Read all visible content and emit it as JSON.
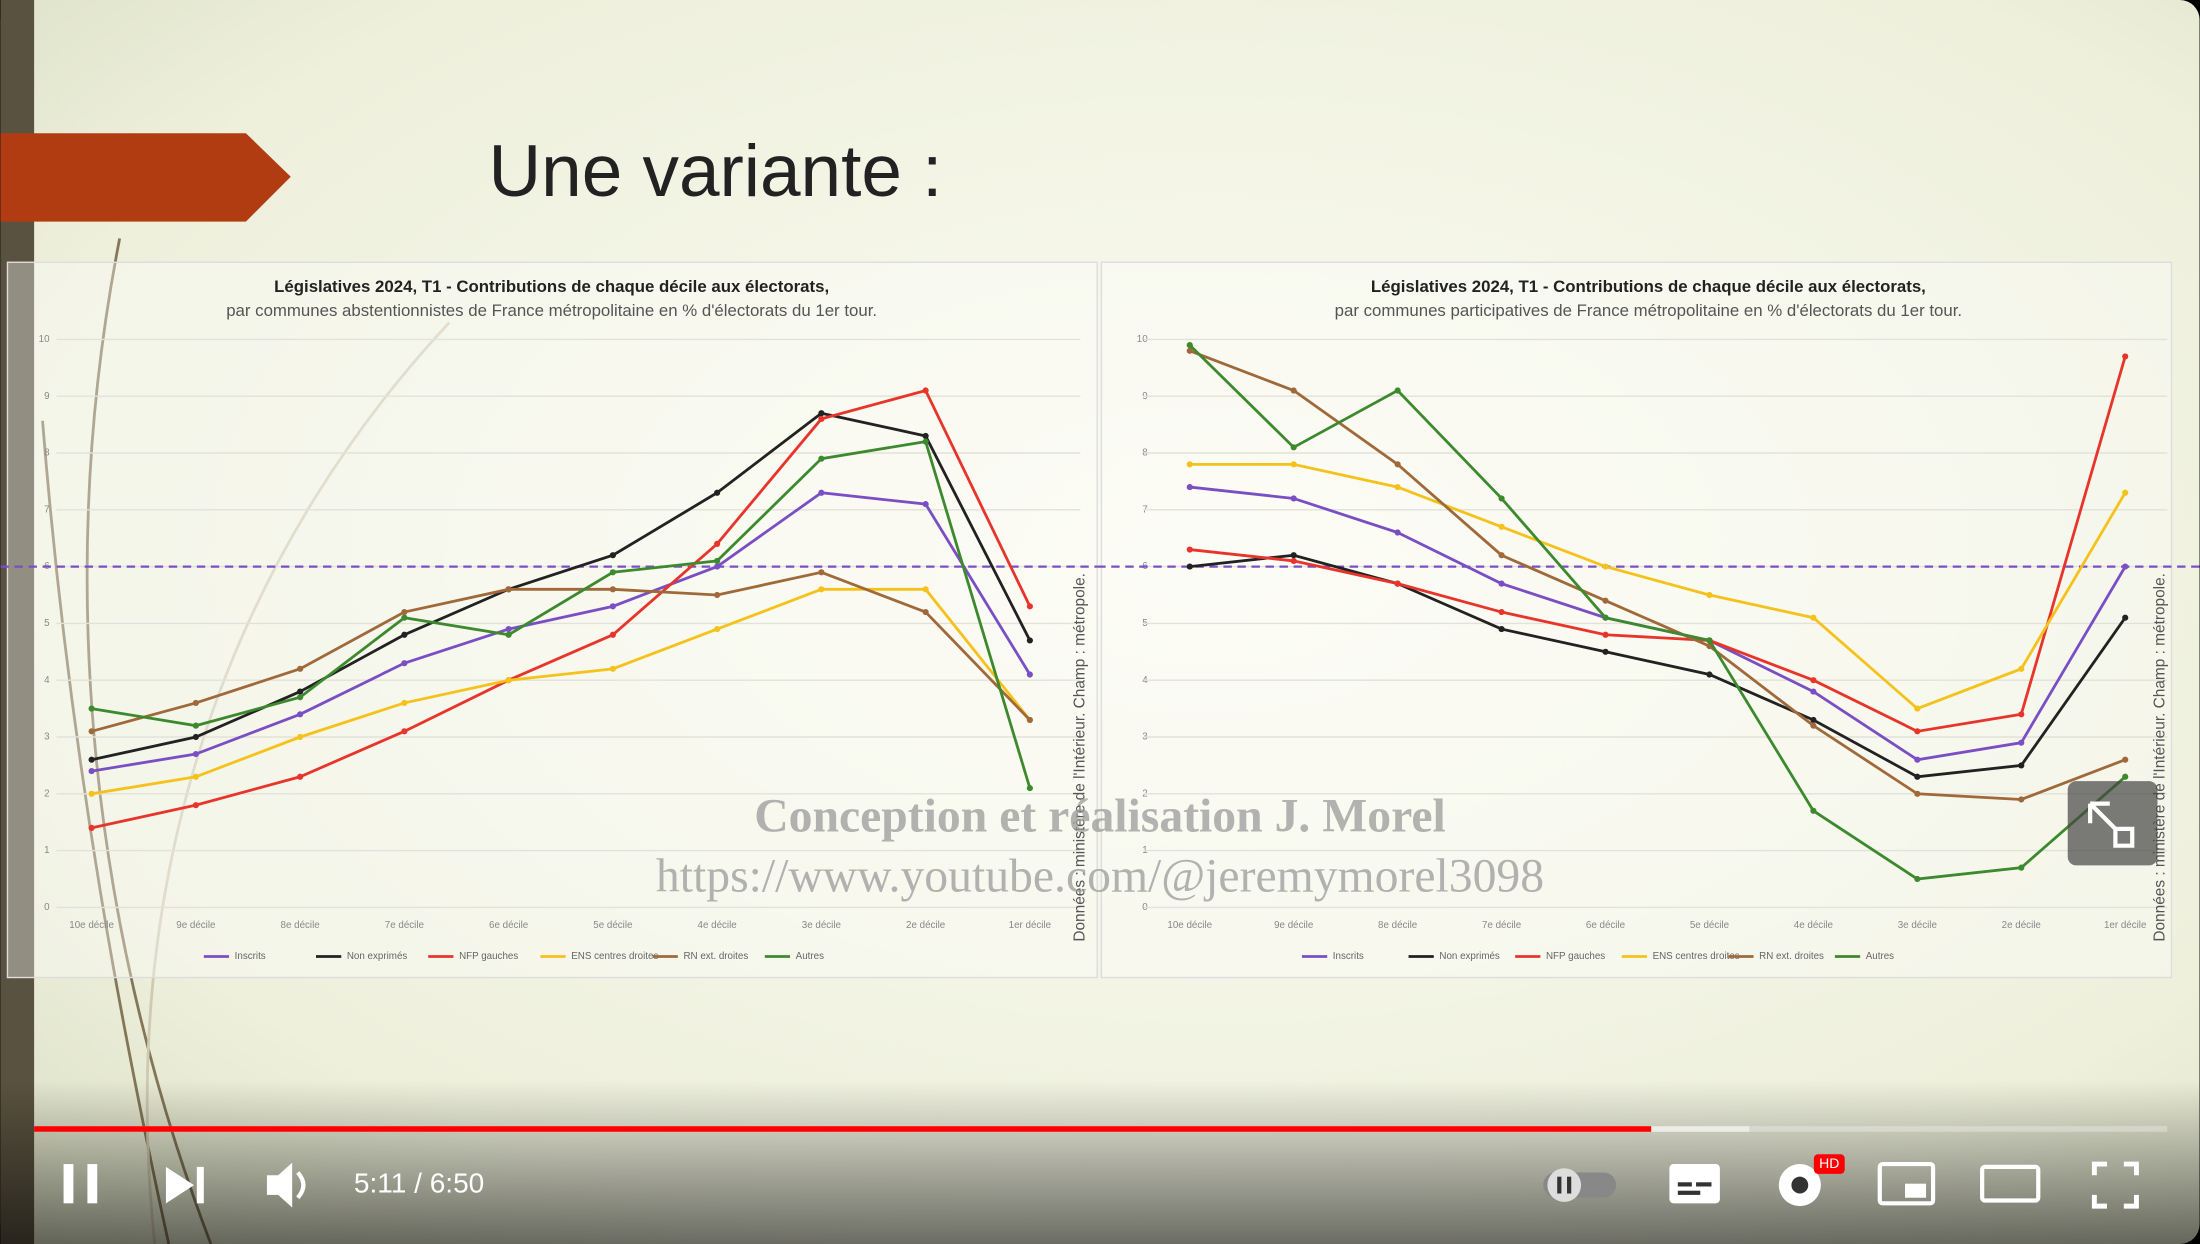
{
  "slide": {
    "title": "Une variante :"
  },
  "chart_data": [
    {
      "type": "line",
      "title": "Législatives 2024, T1 - Contributions de chaque décile aux électorats,",
      "subtitle": "par communes abstentionnistes de France métropolitaine en % d'électorats du 1er tour.",
      "source": "Données : ministère de l'Intérieur. Champ : métropole.",
      "categories": [
        "10e décile",
        "9e décile",
        "8e décile",
        "7e décile",
        "6e décile",
        "5e décile",
        "4e décile",
        "3e décile",
        "2e décile",
        "1er décile"
      ],
      "ylim": [
        0,
        10
      ],
      "yticks": [
        0,
        1,
        2,
        3,
        4,
        5,
        6,
        7,
        8,
        9,
        10
      ],
      "grid": true,
      "reference_line": 6,
      "series": [
        {
          "name": "Inscrits",
          "color": "#7b4fc4",
          "values": [
            2.4,
            2.7,
            3.4,
            4.3,
            4.9,
            5.3,
            6.0,
            7.3,
            7.1,
            4.1
          ]
        },
        {
          "name": "Non exprimés",
          "color": "#222222",
          "values": [
            2.6,
            3.0,
            3.8,
            4.8,
            5.6,
            6.2,
            7.3,
            8.7,
            8.3,
            4.7
          ]
        },
        {
          "name": "NFP gauches",
          "color": "#e8352b",
          "values": [
            1.4,
            1.8,
            2.3,
            3.1,
            4.0,
            4.8,
            6.4,
            8.6,
            9.1,
            5.3
          ]
        },
        {
          "name": "ENS centres droites",
          "color": "#f5c21b",
          "values": [
            2.0,
            2.3,
            3.0,
            3.6,
            4.0,
            4.2,
            4.9,
            5.6,
            5.6,
            3.3
          ]
        },
        {
          "name": "RN ext. droites",
          "color": "#a0693a",
          "values": [
            3.1,
            3.6,
            4.2,
            5.2,
            5.6,
            5.6,
            5.5,
            5.9,
            5.2,
            3.3
          ]
        },
        {
          "name": "Autres",
          "color": "#3d8a2e",
          "values": [
            3.5,
            3.2,
            3.7,
            5.1,
            4.8,
            5.9,
            6.1,
            7.9,
            8.2,
            2.1
          ]
        }
      ]
    },
    {
      "type": "line",
      "title": "Législatives 2024, T1 - Contributions de chaque décile aux électorats,",
      "subtitle": "par communes participatives de France métropolitaine en % d'électorats du 1er tour.",
      "source": "Données : ministère de l'Intérieur. Champ : métropole.",
      "categories": [
        "10e décile",
        "9e décile",
        "8e décile",
        "7e décile",
        "6e décile",
        "5e décile",
        "4e décile",
        "3e décile",
        "2e décile",
        "1er décile"
      ],
      "ylim": [
        0,
        10
      ],
      "yticks": [
        0,
        1,
        2,
        3,
        4,
        5,
        6,
        7,
        8,
        9,
        10
      ],
      "grid": true,
      "reference_line": 6,
      "series": [
        {
          "name": "Inscrits",
          "color": "#7b4fc4",
          "values": [
            7.4,
            7.2,
            6.6,
            5.7,
            5.1,
            4.7,
            3.8,
            2.6,
            2.9,
            6.0
          ]
        },
        {
          "name": "Non exprimés",
          "color": "#222222",
          "values": [
            6.0,
            6.2,
            5.7,
            4.9,
            4.5,
            4.1,
            3.3,
            2.3,
            2.5,
            5.1
          ]
        },
        {
          "name": "NFP gauches",
          "color": "#e8352b",
          "values": [
            6.3,
            6.1,
            5.7,
            5.2,
            4.8,
            4.7,
            4.0,
            3.1,
            3.4,
            9.7
          ]
        },
        {
          "name": "ENS centres droites",
          "color": "#f5c21b",
          "values": [
            7.8,
            7.8,
            7.4,
            6.7,
            6.0,
            5.5,
            5.1,
            3.5,
            4.2,
            7.3
          ]
        },
        {
          "name": "RN ext. droites",
          "color": "#a0693a",
          "values": [
            9.8,
            9.1,
            7.8,
            6.2,
            5.4,
            4.6,
            3.2,
            2.0,
            1.9,
            2.6
          ]
        },
        {
          "name": "Autres",
          "color": "#3d8a2e",
          "values": [
            9.9,
            8.1,
            9.1,
            7.2,
            5.1,
            4.7,
            1.7,
            0.5,
            0.7,
            2.3
          ]
        }
      ]
    }
  ],
  "watermark": {
    "line1": "Conception et réalisation J. Morel",
    "line2": "https://www.youtube.com/@jeremymorel3098"
  },
  "player": {
    "time": "5:11 / 6:50",
    "quality_badge": "HD"
  }
}
